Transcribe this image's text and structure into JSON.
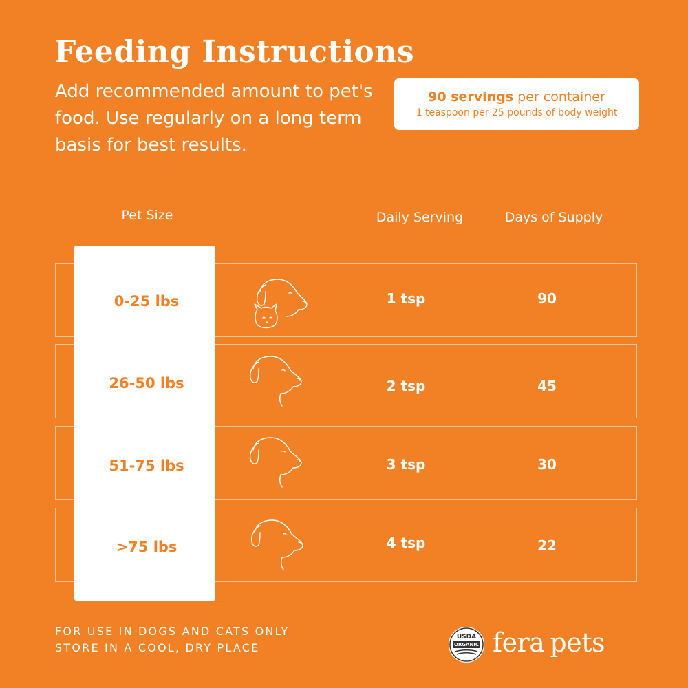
{
  "header": {
    "title": "Feeding Instructions",
    "subtitle": "Add recommended amount to pet's food. Use regularly on a long term basis for best results."
  },
  "servings_box": {
    "count": "90 servings",
    "count_suffix": " per container",
    "detail": "1 teaspoon per 25 pounds of body weight"
  },
  "table": {
    "headers": {
      "pet_size": "Pet Size",
      "daily_serving": "Daily Serving",
      "days_of_supply": "Days of Supply"
    },
    "rows": [
      {
        "size": "0-25 lbs",
        "serving": "1 tsp",
        "days": "90",
        "icon": "dog-and-cat-icon"
      },
      {
        "size": "26-50 lbs",
        "serving": "2 tsp",
        "days": "45",
        "icon": "dog-head-icon"
      },
      {
        "size": "51-75 lbs",
        "serving": "3 tsp",
        "days": "30",
        "icon": "dog-head-icon"
      },
      {
        "size": ">75 lbs",
        "serving": "4 tsp",
        "days": "22",
        "icon": "dog-head-icon"
      }
    ]
  },
  "footer": {
    "line1": "FOR USE IN DOGS AND CATS ONLY",
    "line2": "STORE IN A COOL, DRY PLACE",
    "usda_top": "USDA",
    "usda_bottom": "ORGANIC",
    "brand_a": "fera",
    "brand_b": "pets"
  },
  "colors": {
    "background": "#F28024",
    "text": "#FFFFFF",
    "accent_text": "#F28024"
  }
}
